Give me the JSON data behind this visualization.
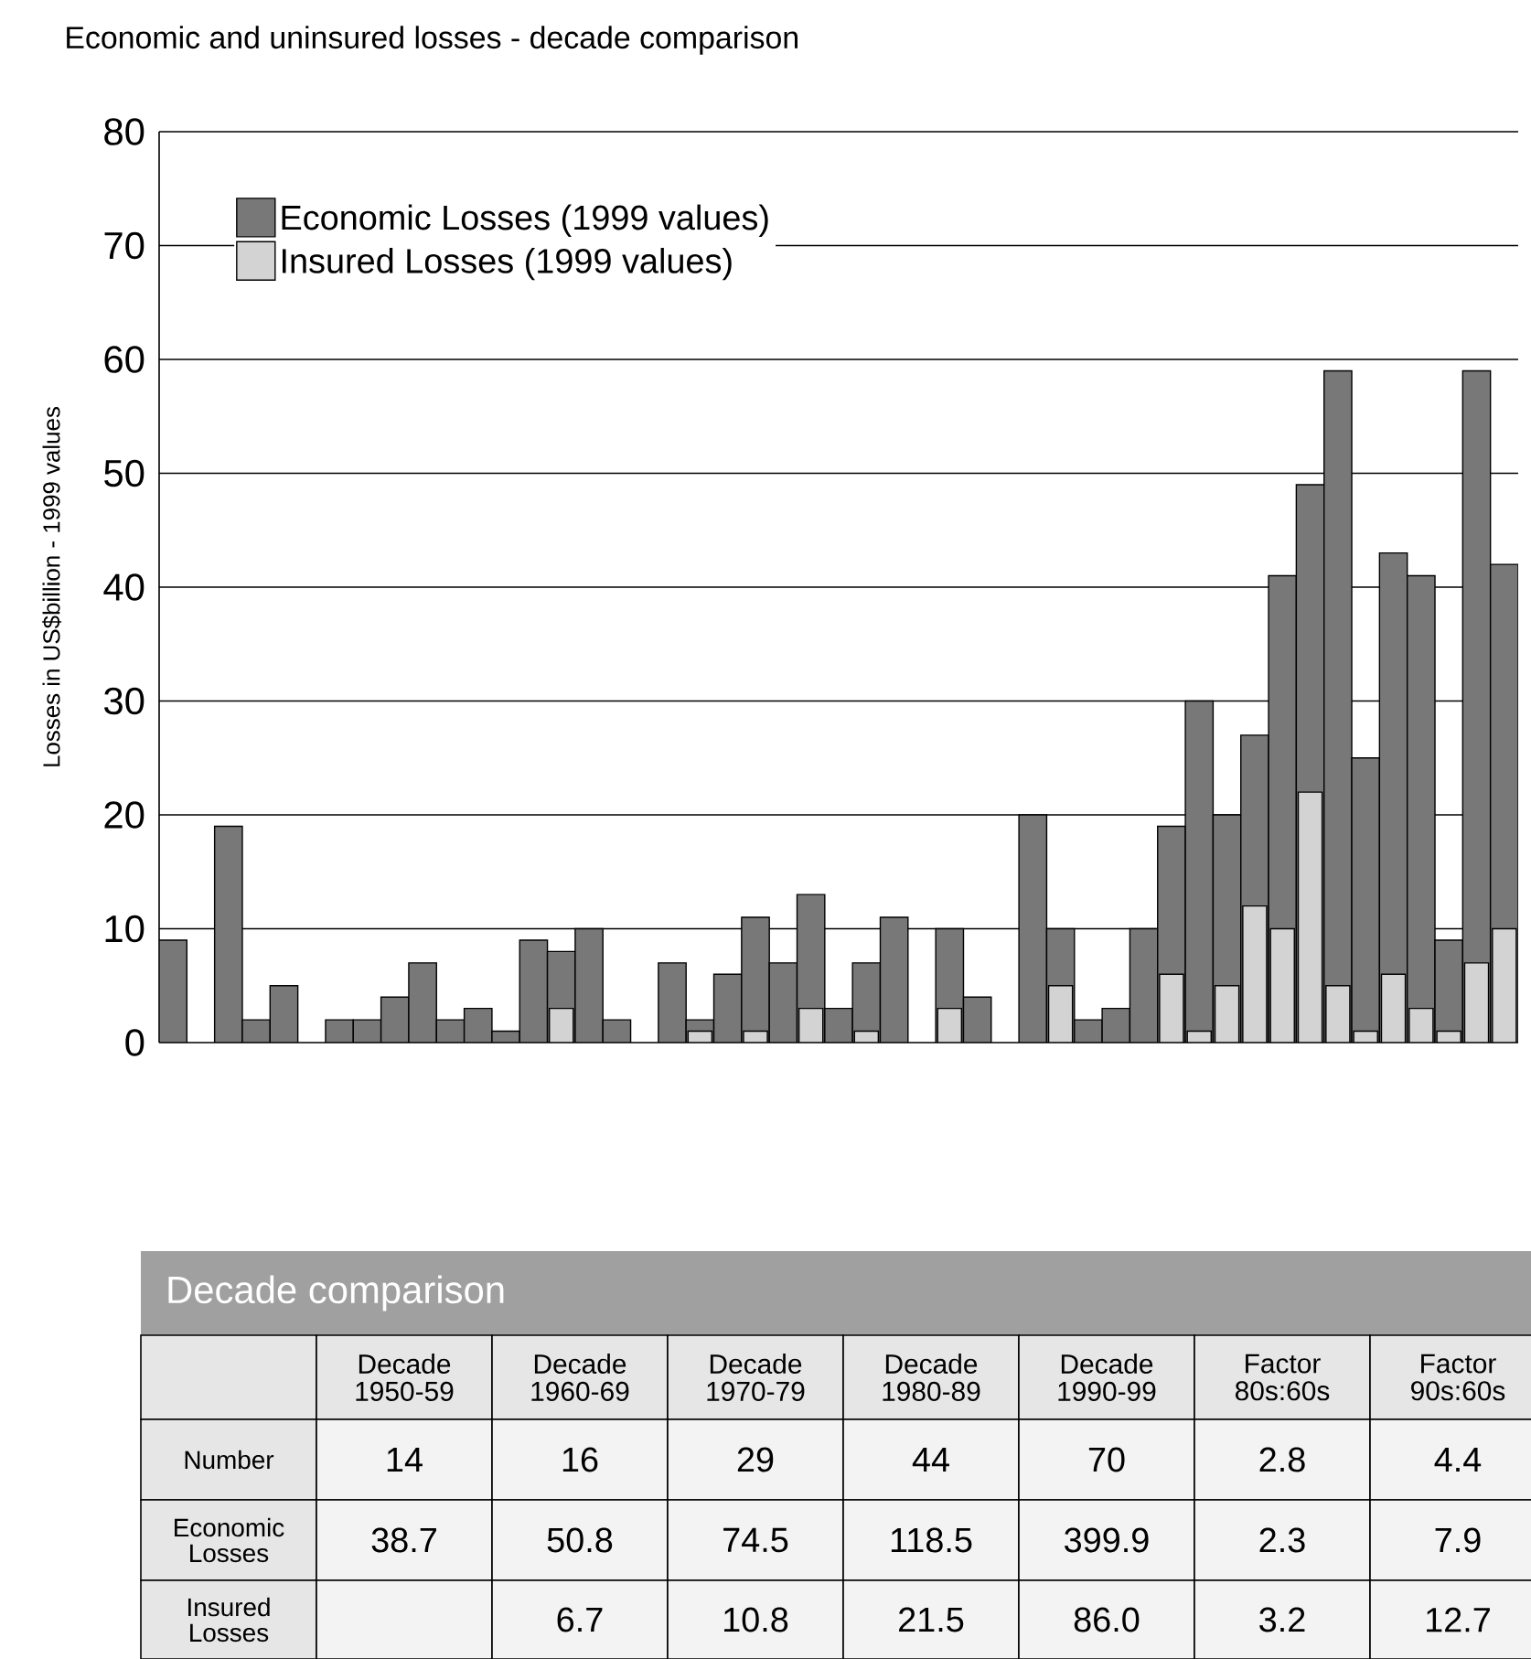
{
  "chart_data": [
    {
      "type": "bar",
      "title": "Economic and uninsured losses - decade comparison",
      "ylabel": "Losses in US$billion - 1999 values",
      "categories": [
        null,
        null,
        null,
        null,
        null,
        null,
        null,
        null,
        null,
        null,
        null,
        null,
        null,
        null,
        null,
        null,
        null,
        null,
        null,
        null,
        null,
        null,
        null,
        null,
        null,
        null,
        null,
        null,
        null,
        null,
        null,
        null,
        null,
        null,
        null,
        null,
        null,
        null,
        null,
        null,
        null,
        null,
        null,
        null,
        null,
        null,
        null,
        null,
        null
      ],
      "series": [
        {
          "name": "Economic Losses (1999 values)",
          "color": "#787878",
          "values": [
            9,
            null,
            19,
            2,
            5,
            null,
            2,
            2,
            4,
            7,
            2,
            3,
            1,
            9,
            8,
            10,
            2,
            null,
            7,
            2,
            6,
            11,
            7,
            13,
            3,
            7,
            11,
            null,
            10,
            4,
            null,
            20,
            10,
            2,
            3,
            10,
            19,
            30,
            20,
            27,
            41,
            49,
            59,
            25,
            43,
            41,
            9,
            59,
            42
          ]
        },
        {
          "name": "Insured Losses (1999 values)",
          "color": "#d3d3d3",
          "values": [
            null,
            null,
            null,
            null,
            null,
            null,
            null,
            null,
            null,
            null,
            null,
            null,
            null,
            null,
            3,
            null,
            null,
            null,
            null,
            1,
            null,
            1,
            null,
            3,
            null,
            1,
            null,
            null,
            3,
            null,
            null,
            null,
            5,
            null,
            null,
            null,
            6,
            1,
            5,
            12,
            10,
            22,
            5,
            1,
            6,
            3,
            1,
            7,
            10
          ]
        }
      ],
      "ylim": [
        0,
        80
      ],
      "yticks": [
        0,
        10,
        20,
        30,
        40,
        50,
        60,
        70,
        80
      ],
      "grid": "y",
      "legend": "top left"
    },
    {
      "type": "other",
      "title": "Decade comparison",
      "categories": [
        "Decade 1950-59",
        "Decade 1960-69",
        "Decade 1970-79",
        "Decade 1980-89",
        "Decade 1990-99",
        "Factor 80s:60s",
        "Factor 90s:60s"
      ],
      "y_categories": [
        "Number",
        "Economic Losses",
        "Insured Losses"
      ],
      "cell_labels": [
        [
          "14",
          "16",
          "29",
          "44",
          "70",
          "2.8",
          "4.4"
        ],
        [
          "38.7",
          "50.8",
          "74.5",
          "118.5",
          "399.9",
          "2.3",
          "7.9"
        ],
        [
          null,
          "6.7",
          "10.8",
          "21.5",
          "86.0",
          "3.2",
          "12.7"
        ]
      ]
    }
  ]
}
